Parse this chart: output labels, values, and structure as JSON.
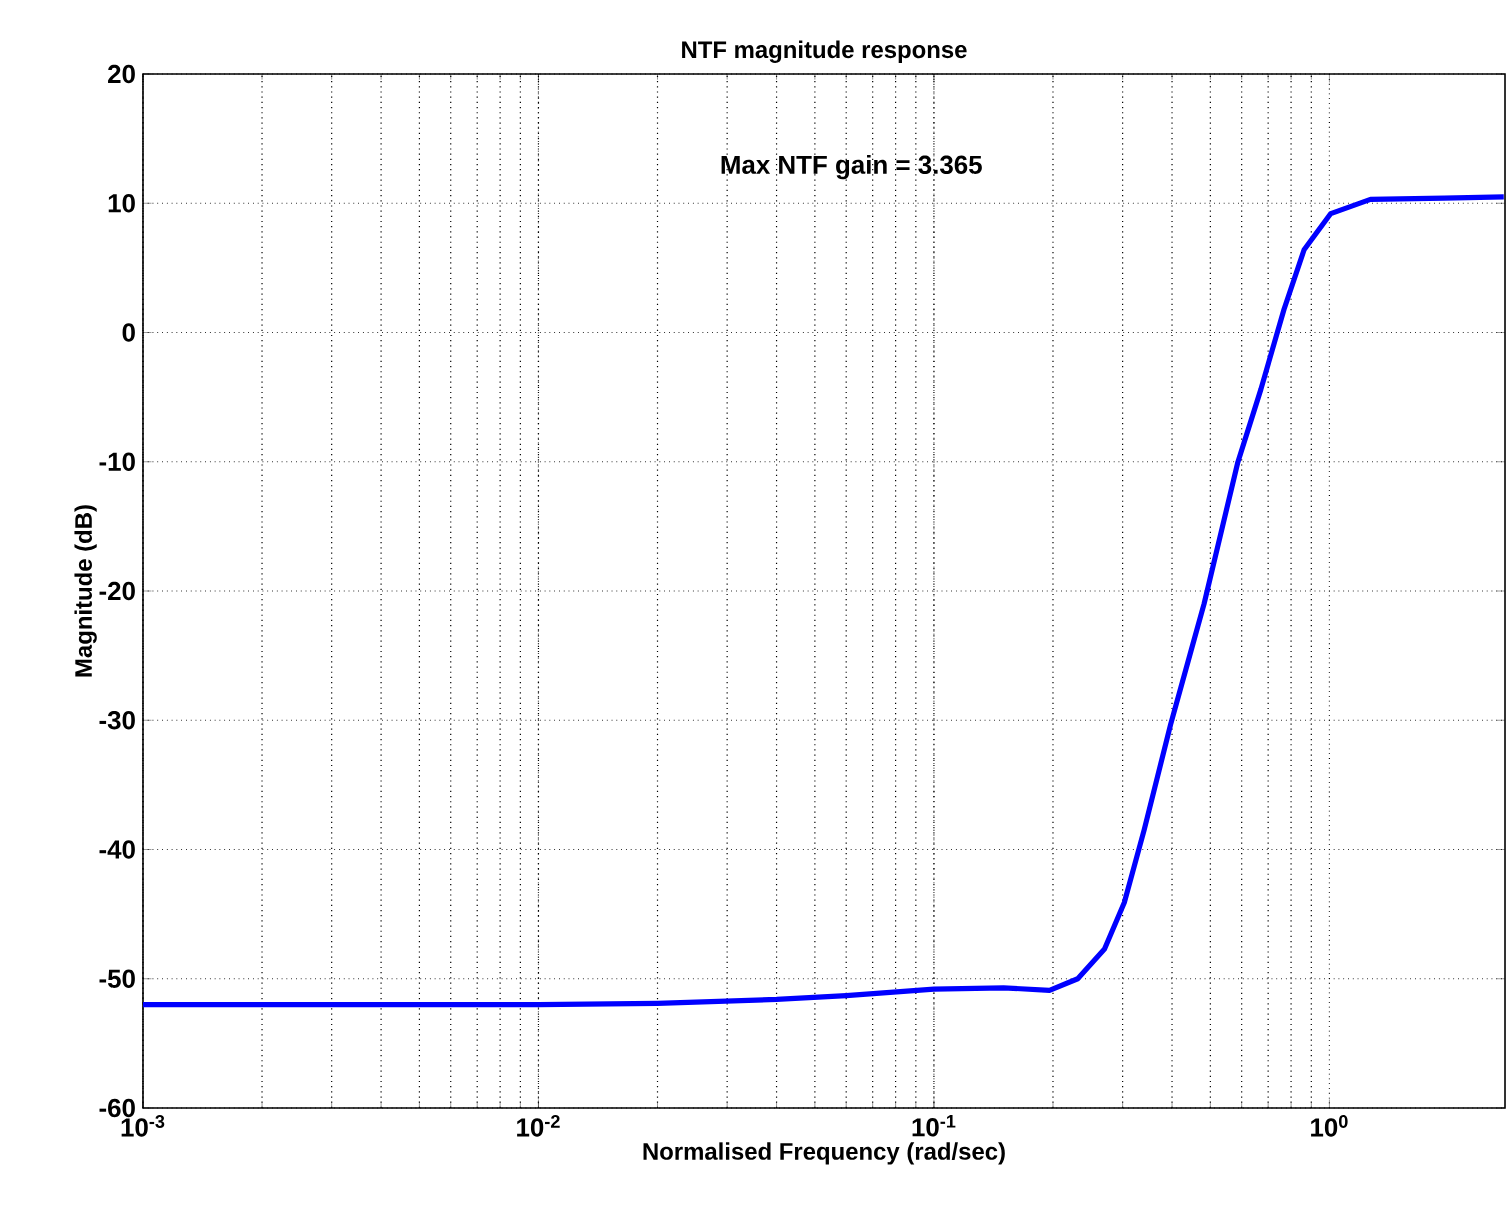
{
  "chart_data": {
    "type": "line",
    "title": "NTF magnitude response",
    "xlabel": "Normalised Frequency  (rad/sec)",
    "ylabel": "Magnitude (dB)",
    "annotations": [
      "Max NTF gain = 3.365"
    ],
    "log": "x",
    "grid": true,
    "line_style": "solid",
    "marker": "none",
    "xlim": [
      0.001,
      2.78
    ],
    "ylim": [
      -60,
      20
    ],
    "xticks": [
      {
        "value": 0.001,
        "label": "10$^{-3}$"
      },
      {
        "value": 0.01,
        "label": "10$^{-2}$"
      },
      {
        "value": 0.1,
        "label": "10$^{-1}$"
      },
      {
        "value": 1,
        "label": "10$^{0}$"
      }
    ],
    "yticks": [
      -60,
      -50,
      -40,
      -30,
      -20,
      -10,
      0,
      10,
      20
    ],
    "x": [
      0.001,
      0.01,
      0.02,
      0.04,
      0.06,
      0.1,
      0.15,
      0.196,
      0.231,
      0.27,
      0.303,
      0.34,
      0.397,
      0.447,
      0.482,
      0.586,
      0.671,
      0.768,
      0.863,
      1.008,
      1.27,
      1.95,
      2.76
    ],
    "series": [
      {
        "color": "#0000ff",
        "values": [
          -52,
          -52,
          -51.9,
          -51.6,
          -51.3,
          -50.8,
          -50.7,
          -50.9,
          -50,
          -47.7,
          -44.1,
          -38.5,
          -30.3,
          -24.6,
          -21.0,
          -10.1,
          -4.4,
          1.8,
          6.4,
          9.2,
          10.3,
          10.4,
          10.5
        ]
      }
    ]
  }
}
